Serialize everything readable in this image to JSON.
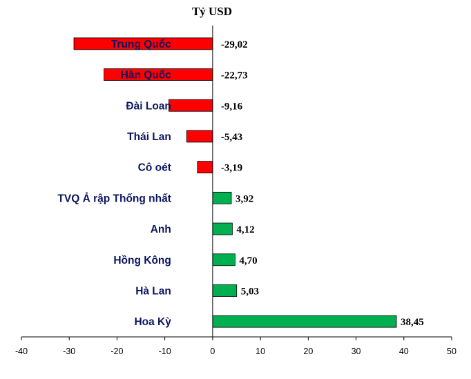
{
  "chart_data": {
    "type": "bar",
    "orientation": "horizontal",
    "title": "Tỷ USD",
    "categories": [
      "Trung Quốc",
      "Hàn Quốc",
      "Đài Loan",
      "Thái Lan",
      "Cô oét",
      "TVQ Ả rập Thống nhất",
      "Anh",
      "Hồng Kông",
      "Hà Lan",
      "Hoa Kỳ"
    ],
    "values": [
      -29.02,
      -22.73,
      -9.16,
      -5.43,
      -3.19,
      3.92,
      4.12,
      4.7,
      5.03,
      38.45
    ],
    "value_labels": [
      "-29,02",
      "-22,73",
      "-9,16",
      "-5,43",
      "-3,19",
      "3,92",
      "4,12",
      "4,70",
      "5,03",
      "38,45"
    ],
    "xlim": [
      -40,
      50
    ],
    "xticks": [
      -40,
      -30,
      -20,
      -10,
      0,
      10,
      20,
      30,
      40,
      50
    ],
    "xlabel": "",
    "ylabel": "",
    "grid": false,
    "legend": "none",
    "colors": {
      "negative": "#ff0000",
      "positive": "#00b050",
      "label_text": "#0b1560"
    }
  }
}
